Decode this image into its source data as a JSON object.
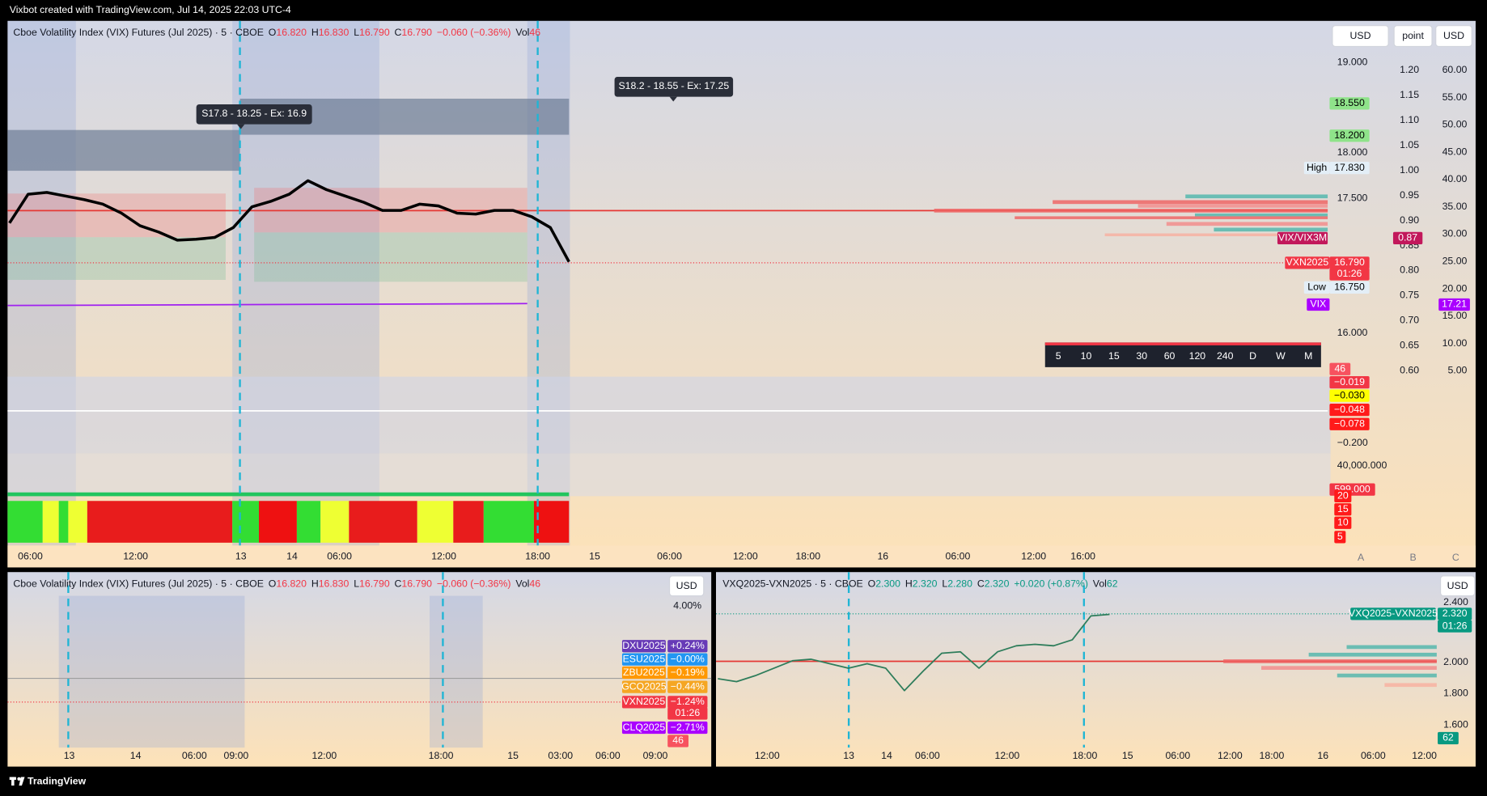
{
  "header": {
    "caption": "Vixbot created with TradingView.com, Jul 14, 2025 22:03 UTC-4"
  },
  "main": {
    "legend": {
      "symbol": "Cboe Volatility Index (VIX) Futures (Jul 2025) · 5 · CBOE",
      "ohlc": [
        {
          "label": "O",
          "value": "16.820"
        },
        {
          "label": "H",
          "value": "16.830"
        },
        {
          "label": "L",
          "value": "16.790"
        },
        {
          "label": "C",
          "value": "16.790"
        }
      ],
      "change": "−0.060 (−0.36%)",
      "volume": {
        "label": "Vol",
        "value": "46"
      }
    },
    "buttons": [
      "USD",
      "point",
      "USD"
    ],
    "annotations": [
      "S17.8 - 18.25 - Ex: 16.9",
      "S18.2 - 18.55 - Ex: 17.25"
    ],
    "price_axis": [
      "19.000",
      "18.000",
      "17.500",
      "16.000",
      "−0.200",
      "40,000.000"
    ],
    "ratio_axis": [
      "1.20",
      "1.15",
      "1.10",
      "1.05",
      "1.00",
      "0.95",
      "0.90",
      "0.85",
      "0.80",
      "0.75",
      "0.70",
      "0.65",
      "0.60"
    ],
    "percent_axis": [
      "60.00",
      "55.00",
      "50.00",
      "45.00",
      "40.00",
      "35.00",
      "30.00",
      "25.00",
      "20.00",
      "15.00",
      "10.00",
      "5.00"
    ],
    "tags": [
      "18.550",
      "18.200",
      "High",
      "17.830",
      "VIX/VIX3M",
      "0.87",
      "VXN2025",
      "16.790",
      "01:26",
      "Low",
      "16.750",
      "VIX",
      "17.21",
      "46",
      "−0.019",
      "−0.030",
      "−0.048",
      "−0.078",
      "599.000",
      "20",
      "15",
      "10",
      "5"
    ],
    "intervals": [
      "5",
      "10",
      "15",
      "30",
      "60",
      "120",
      "240",
      "D",
      "W",
      "M"
    ],
    "time_axis": [
      "06:00",
      "12:00",
      "13",
      "14",
      "06:00",
      "12:00",
      "18:00",
      "15",
      "06:00",
      "12:00",
      "18:00",
      "16",
      "06:00",
      "12:00",
      "16:00"
    ],
    "pane_labels": [
      "A",
      "B",
      "C"
    ],
    "close": [
      17.22,
      17.54,
      17.56,
      17.52,
      17.48,
      17.43,
      17.33,
      17.19,
      17.12,
      17.03,
      17.04,
      17.06,
      17.17,
      17.4,
      17.46,
      17.54,
      17.69,
      17.59,
      17.52,
      17.45,
      17.36,
      17.36,
      17.43,
      17.41,
      17.33,
      17.32,
      17.36,
      17.36,
      17.29,
      17.17,
      16.79
    ]
  },
  "compare": {
    "legend": {
      "symbol": "Cboe Volatility Index (VIX) Futures (Jul 2025) · 5 · CBOE",
      "ohlc": [
        {
          "label": "O",
          "value": "16.820"
        },
        {
          "label": "H",
          "value": "16.830"
        },
        {
          "label": "L",
          "value": "16.790"
        },
        {
          "label": "C",
          "value": "16.790"
        }
      ],
      "change": "−0.060 (−0.36%)",
      "volume": {
        "label": "Vol",
        "value": "46"
      }
    },
    "button": "USD",
    "axis": [
      "4.00%"
    ],
    "tags": [
      {
        "name": "DXU2025",
        "value": "+0.24%"
      },
      {
        "name": "ESU2025",
        "value": "−0.00%"
      },
      {
        "name": "ZBU2025",
        "value": "−0.19%"
      },
      {
        "name": "GCQ2025",
        "value": "−0.44%"
      },
      {
        "name": "VXN2025",
        "value": "−1.24%",
        "timer": "01:26"
      },
      {
        "name": "CLQ2025",
        "value": "−2.71%"
      }
    ],
    "volume_tag": "46",
    "time_axis": [
      "13",
      "14",
      "06:00",
      "09:00",
      "12:00",
      "18:00",
      "15",
      "03:00",
      "06:00",
      "09:00"
    ]
  },
  "spread": {
    "legend": {
      "symbol": "VXQ2025-VXN2025 · 5 · CBOE",
      "ohlc": [
        {
          "label": "O",
          "value": "2.300"
        },
        {
          "label": "H",
          "value": "2.320"
        },
        {
          "label": "L",
          "value": "2.280"
        },
        {
          "label": "C",
          "value": "2.320"
        }
      ],
      "change": "+0.020 (+0.87%)",
      "volume": {
        "label": "Vol",
        "value": "62"
      }
    },
    "button": "USD",
    "axis": [
      "2.400",
      "2.000",
      "1.800",
      "1.600"
    ],
    "tag": {
      "name": "VXQ2025-VXN2025",
      "value": "2.320",
      "timer": "01:26"
    },
    "volume_tag": "62",
    "time_axis": [
      "12:00",
      "13",
      "14",
      "06:00",
      "12:00",
      "18:00",
      "15",
      "06:00",
      "12:00",
      "18:00",
      "16",
      "06:00",
      "12:00"
    ],
    "close": [
      1.89,
      1.87,
      1.91,
      1.96,
      2.01,
      2.02,
      1.99,
      1.96,
      1.99,
      1.96,
      1.81,
      1.94,
      2.06,
      2.07,
      1.96,
      2.07,
      2.11,
      2.12,
      2.11,
      2.15,
      2.31,
      2.32
    ]
  },
  "footer": {
    "brand": "TradingView"
  }
}
